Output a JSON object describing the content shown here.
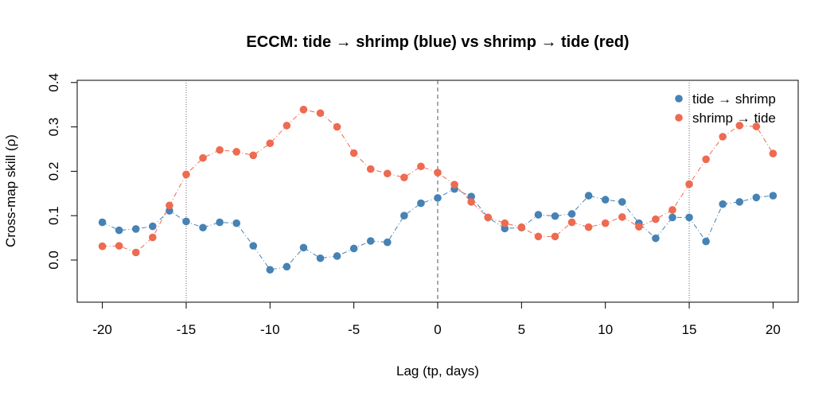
{
  "chart_data": {
    "type": "scatter",
    "title": "ECCM: tide → shrimp (blue) vs shrimp → tide (red)",
    "xlabel": "Lag (tp, days)",
    "ylabel": "Cross-map skill (ρ)",
    "xlim": [
      -21.5,
      21.5
    ],
    "ylim": [
      -0.095,
      0.405
    ],
    "x_ticks": [
      -20,
      -15,
      -10,
      -5,
      0,
      5,
      10,
      15,
      20
    ],
    "y_ticks": [
      0.0,
      0.1,
      0.2,
      0.3,
      0.4
    ],
    "x_tick_labels": [
      "-20",
      "-15",
      "-10",
      "-5",
      "0",
      "5",
      "10",
      "15",
      "20"
    ],
    "y_tick_labels": [
      "0.0",
      "0.1",
      "0.2",
      "0.3",
      "0.4"
    ],
    "reference_lines": [
      {
        "x": -15,
        "style": "dotted"
      },
      {
        "x": 0,
        "style": "dashed"
      },
      {
        "x": 15,
        "style": "dotted"
      }
    ],
    "grid": false,
    "legend_position": "top-right",
    "x": [
      -20,
      -19,
      -18,
      -17,
      -16,
      -15,
      -14,
      -13,
      -12,
      -11,
      -10,
      -9,
      -8,
      -7,
      -6,
      -5,
      -4,
      -3,
      -2,
      -1,
      0,
      1,
      2,
      3,
      4,
      5,
      6,
      7,
      8,
      9,
      10,
      11,
      12,
      13,
      14,
      15,
      16,
      17,
      18,
      19,
      20
    ],
    "series": [
      {
        "name": "tide → shrimp",
        "color": "#4682B4",
        "values": [
          0.085,
          0.067,
          0.07,
          0.076,
          0.111,
          0.087,
          0.073,
          0.085,
          0.083,
          0.032,
          -0.022,
          -0.015,
          0.028,
          0.004,
          0.009,
          0.026,
          0.043,
          0.04,
          0.1,
          0.128,
          0.14,
          0.16,
          0.143,
          0.096,
          0.071,
          0.073,
          0.102,
          0.099,
          0.104,
          0.145,
          0.136,
          0.131,
          0.083,
          0.049,
          0.096,
          0.096,
          0.042,
          0.126,
          0.131,
          0.141,
          0.145
        ]
      },
      {
        "name": "shrimp → tide",
        "color": "#EE6A50",
        "values": [
          0.031,
          0.032,
          0.017,
          0.051,
          0.123,
          0.193,
          0.23,
          0.248,
          0.244,
          0.236,
          0.263,
          0.303,
          0.339,
          0.331,
          0.3,
          0.241,
          0.205,
          0.195,
          0.186,
          0.211,
          0.197,
          0.17,
          0.131,
          0.096,
          0.083,
          0.074,
          0.053,
          0.053,
          0.085,
          0.074,
          0.083,
          0.097,
          0.075,
          0.092,
          0.113,
          0.171,
          0.227,
          0.278,
          0.303,
          0.301,
          0.24
        ]
      }
    ]
  }
}
